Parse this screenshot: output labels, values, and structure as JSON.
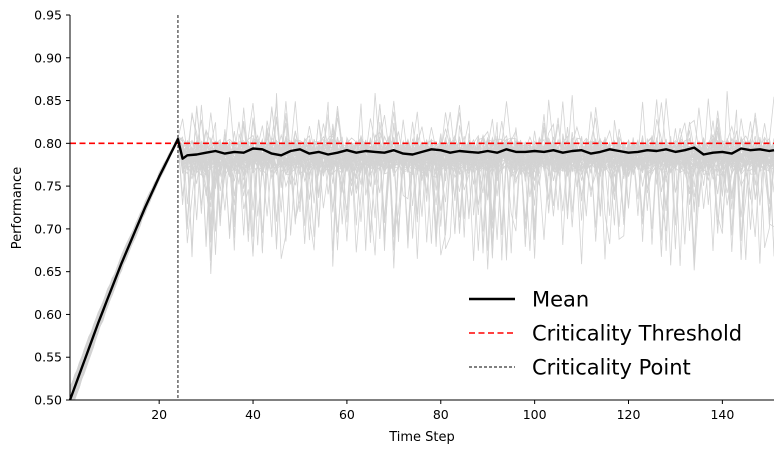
{
  "chart_data": {
    "type": "line",
    "title": "",
    "xlabel": "Time Step",
    "ylabel": "Performance",
    "xlim": [
      1,
      151
    ],
    "ylim": [
      0.5,
      0.95
    ],
    "x_ticks": [
      20,
      40,
      60,
      80,
      100,
      120,
      140
    ],
    "y_ticks": [
      0.5,
      0.55,
      0.6,
      0.65,
      0.7,
      0.75,
      0.8,
      0.85,
      0.9,
      0.95
    ],
    "grid": false,
    "legend_position": "lower-right",
    "threshold": 0.8,
    "criticality_step": 24,
    "background_runs": {
      "count": 50,
      "color": "#d3d3d3",
      "approx_range_after_criticality": [
        0.64,
        0.88
      ]
    },
    "series": [
      {
        "name": "Mean",
        "color": "#000000",
        "style": "solid",
        "x": [
          1,
          2,
          3,
          4,
          5,
          6,
          7,
          8,
          9,
          10,
          11,
          12,
          13,
          14,
          15,
          16,
          17,
          18,
          19,
          20,
          21,
          22,
          23,
          24,
          25,
          26,
          28,
          30,
          32,
          34,
          36,
          38,
          40,
          42,
          44,
          46,
          48,
          50,
          52,
          54,
          56,
          58,
          60,
          62,
          64,
          66,
          68,
          70,
          72,
          74,
          76,
          78,
          80,
          82,
          84,
          86,
          88,
          90,
          92,
          94,
          96,
          98,
          100,
          102,
          104,
          106,
          108,
          110,
          112,
          114,
          116,
          118,
          120,
          122,
          124,
          126,
          128,
          130,
          132,
          134,
          136,
          138,
          140,
          142,
          144,
          146,
          148,
          150,
          151
        ],
        "y": [
          0.5,
          0.515,
          0.53,
          0.545,
          0.56,
          0.575,
          0.59,
          0.604,
          0.618,
          0.632,
          0.646,
          0.66,
          0.673,
          0.686,
          0.699,
          0.712,
          0.725,
          0.737,
          0.749,
          0.761,
          0.772,
          0.783,
          0.794,
          0.805,
          0.782,
          0.786,
          0.787,
          0.789,
          0.791,
          0.788,
          0.79,
          0.789,
          0.794,
          0.793,
          0.788,
          0.786,
          0.791,
          0.793,
          0.788,
          0.79,
          0.787,
          0.789,
          0.792,
          0.789,
          0.791,
          0.79,
          0.789,
          0.792,
          0.788,
          0.787,
          0.79,
          0.793,
          0.792,
          0.789,
          0.791,
          0.79,
          0.789,
          0.791,
          0.789,
          0.793,
          0.79,
          0.79,
          0.791,
          0.79,
          0.792,
          0.789,
          0.791,
          0.792,
          0.788,
          0.79,
          0.793,
          0.791,
          0.789,
          0.79,
          0.792,
          0.791,
          0.793,
          0.79,
          0.792,
          0.795,
          0.787,
          0.789,
          0.79,
          0.788,
          0.794,
          0.792,
          0.793,
          0.791,
          0.792
        ]
      },
      {
        "name": "Criticality Threshold",
        "color": "#ff0000",
        "style": "dashed",
        "y_value": 0.8
      },
      {
        "name": "Criticality Point",
        "color": "#000000",
        "style": "dashed-thin",
        "x_value": 24
      }
    ]
  }
}
